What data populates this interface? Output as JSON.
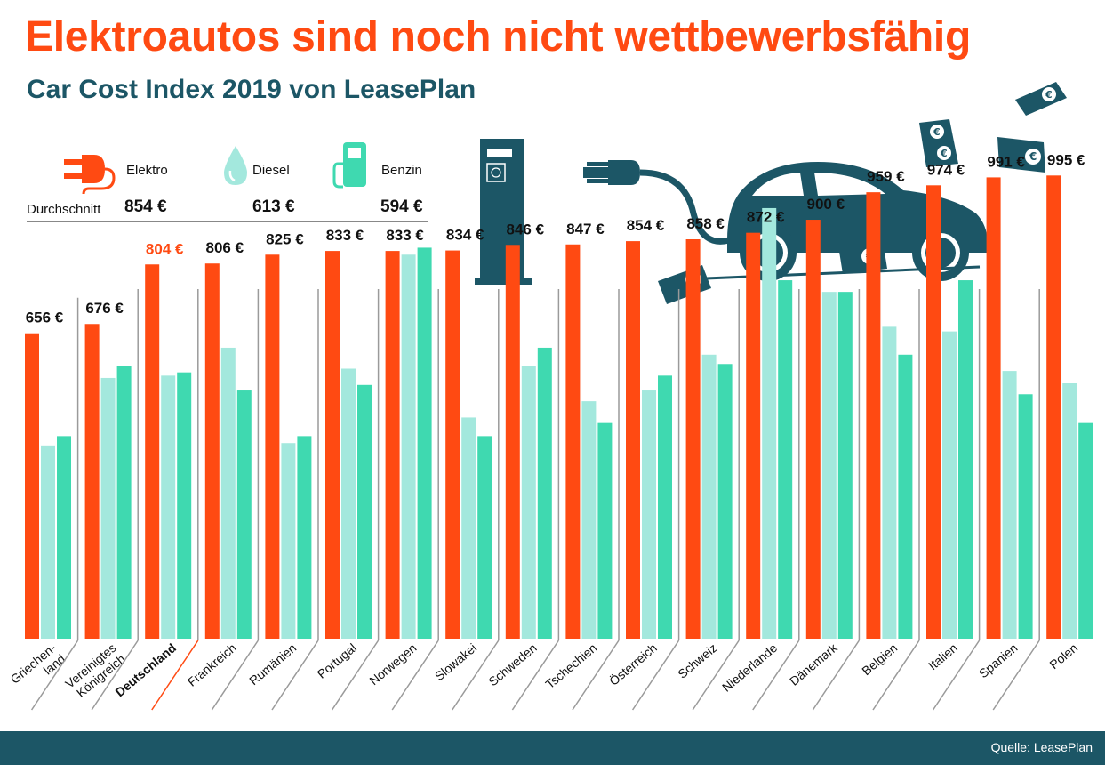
{
  "title": "Elektroautos sind noch nicht wettbewerbsfähig",
  "subtitle": "Car Cost Index 2019 von LeasePlan",
  "legend": {
    "average_label": "Durchschnitt",
    "items": [
      {
        "label": "Elektro",
        "average": "854 €",
        "icon": "plug-icon",
        "color": "#ff4a12"
      },
      {
        "label": "Diesel",
        "average": "613 €",
        "icon": "drop-icon",
        "color": "#a3e8dd"
      },
      {
        "label": "Benzin",
        "average": "594 €",
        "icon": "fuel-pump-icon",
        "color": "#3fd9b0"
      }
    ]
  },
  "source": "Quelle: LeasePlan",
  "colors": {
    "elektro": "#ff4a12",
    "diesel": "#a3e8dd",
    "benzin": "#3fd9b0",
    "dark": "#1c5666",
    "highlight": "#ff4a12"
  },
  "chart_data": {
    "type": "bar",
    "categories": [
      [
        "Griechen-",
        "land"
      ],
      [
        "Vereinigtes",
        "Königreich"
      ],
      [
        "Deutschland"
      ],
      [
        "Frankreich"
      ],
      [
        "Rumänien"
      ],
      [
        "Portugal"
      ],
      [
        "Norwegen"
      ],
      [
        "Slowakei"
      ],
      [
        "Schweden"
      ],
      [
        "Tschechien"
      ],
      [
        "Österreich"
      ],
      [
        "Schweiz"
      ],
      [
        "Niederlande"
      ],
      [
        "Dänemark"
      ],
      [
        "Belgien"
      ],
      [
        "Italien"
      ],
      [
        "Spanien"
      ],
      [
        "Polen"
      ]
    ],
    "highlight_index": 2,
    "series": [
      {
        "name": "Elektro",
        "values": [
          656,
          676,
          804,
          806,
          825,
          833,
          833,
          834,
          846,
          847,
          854,
          858,
          872,
          900,
          959,
          974,
          991,
          995
        ]
      },
      {
        "name": "Diesel",
        "values": [
          415,
          560,
          565,
          625,
          420,
          580,
          825,
          475,
          585,
          510,
          535,
          610,
          925,
          745,
          670,
          660,
          575,
          550
        ]
      },
      {
        "name": "Benzin",
        "values": [
          435,
          585,
          572,
          535,
          435,
          545,
          840,
          435,
          625,
          465,
          565,
          590,
          770,
          745,
          610,
          770,
          525,
          465
        ]
      }
    ],
    "value_labels": [
      "656 €",
      "676 €",
      "804 €",
      "806 €",
      "825 €",
      "833 €",
      "833 €",
      "834 €",
      "846 €",
      "847 €",
      "854 €",
      "858 €",
      "872 €",
      "900 €",
      "959 €",
      "974 €",
      "991 €",
      "995 €"
    ],
    "ylim": [
      0,
      1000
    ]
  }
}
